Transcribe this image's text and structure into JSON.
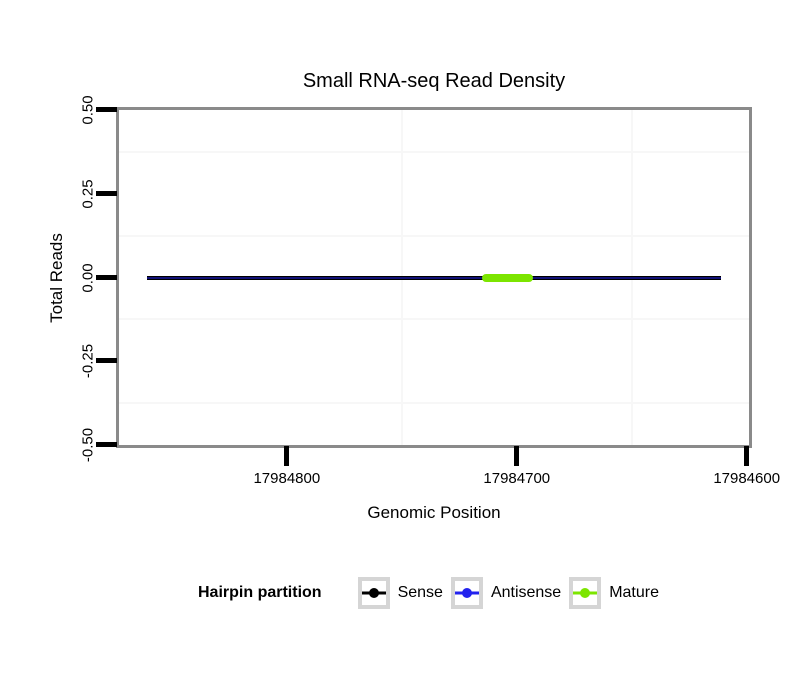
{
  "chart_data": {
    "type": "line",
    "title": "Small RNA-seq Read Density",
    "xlabel": "Genomic Position",
    "ylabel": "Total Reads",
    "x_axis": {
      "reversed": true,
      "range": [
        17984873,
        17984599
      ],
      "ticks": [
        {
          "value": 17984800,
          "label": "17984800"
        },
        {
          "value": 17984700,
          "label": "17984700"
        },
        {
          "value": 17984600,
          "label": "17984600"
        }
      ],
      "minor_gridlines": [
        17984750,
        17984650
      ]
    },
    "y_axis": {
      "range": [
        -0.5,
        0.5
      ],
      "ticks": [
        {
          "value": 0.5,
          "label": "0.50"
        },
        {
          "value": 0.25,
          "label": "0.25"
        },
        {
          "value": 0,
          "label": "0.00"
        },
        {
          "value": -0.25,
          "label": "-0.25"
        },
        {
          "value": -0.5,
          "label": "-0.50"
        }
      ],
      "minor_gridlines": [
        0.375,
        0.125,
        -0.125,
        -0.375
      ]
    },
    "series": [
      {
        "name": "Sense",
        "color": "#000000",
        "total_reads": 0,
        "span": [
          17984861,
          17984611
        ],
        "style": "line"
      },
      {
        "name": "Antisense",
        "color": "#2222EE",
        "total_reads": 0,
        "span": [
          17984861,
          17984611
        ],
        "style": "line-overlay"
      },
      {
        "name": "Mature",
        "color": "#7CE500",
        "total_reads": 0,
        "span": [
          17984715,
          17984693
        ],
        "style": "thick-segment"
      }
    ],
    "legend": {
      "title": "Hairpin partition",
      "position": "bottom",
      "entries": [
        "Sense",
        "Antisense",
        "Mature"
      ]
    },
    "colors": {
      "panel_border": "#8A8A8A",
      "gridline": "#F7F7F7",
      "tick": "#000000",
      "legend_key_border": "#D5D5D5",
      "background": "#FFFFFF"
    }
  }
}
